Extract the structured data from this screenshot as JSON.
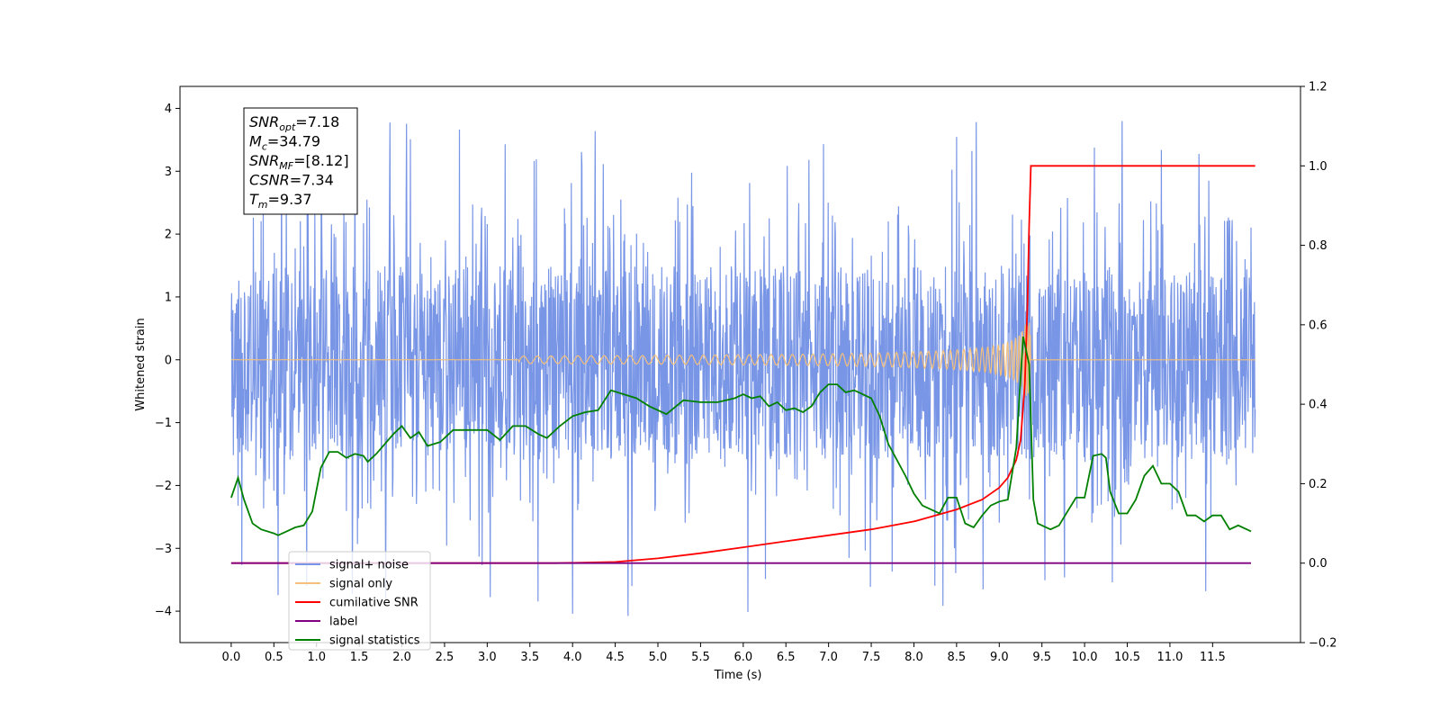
{
  "chart_data": {
    "type": "line",
    "xlabel": "Time (s)",
    "ylabel": "Whitened strain",
    "xlim": [
      -0.6,
      12.53
    ],
    "ylim": [
      -4.5,
      4.35
    ],
    "y2lim": [
      -0.2,
      1.2
    ],
    "xticks": [
      "0.0",
      "0.5",
      "1.0",
      "1.5",
      "2.0",
      "2.5",
      "3.0",
      "3.5",
      "4.0",
      "4.5",
      "5.0",
      "5.5",
      "6.0",
      "6.5",
      "7.0",
      "7.5",
      "8.0",
      "8.5",
      "9.0",
      "9.5",
      "10.0",
      "10.5",
      "11.0",
      "11.5"
    ],
    "yticks": [
      "4",
      "3",
      "2",
      "1",
      "0",
      "−1",
      "−2",
      "−3",
      "−4"
    ],
    "y2ticks": [
      "1.2",
      "1.0",
      "0.8",
      "0.6",
      "0.4",
      "0.2",
      "0.0",
      "−0.2"
    ],
    "grid": false,
    "legend_position": "lower-left",
    "annotation": {
      "lines": [
        {
          "var": "SNR",
          "sub": "opt",
          "value": "=7.18"
        },
        {
          "var": "M",
          "sub": "c",
          "value": "=34.79"
        },
        {
          "var": "SNR",
          "sub": "MF",
          "value": "=[8.12]"
        },
        {
          "var": "CSNR",
          "sub": "",
          "value": "=7.34"
        },
        {
          "var": "T",
          "sub": "m",
          "value": "=9.37"
        }
      ]
    },
    "series": [
      {
        "name": "signal+ noise",
        "color": "#7895e6",
        "axis": "left",
        "x_range": [
          0.0,
          12.0
        ],
        "amplitude_band": [
          -1.6,
          1.5
        ],
        "peak_max": 3.9,
        "peak_min": -4.1
      },
      {
        "name": "signal only",
        "color": "#f5c07a",
        "axis": "left",
        "x_range": [
          0.0,
          12.0
        ],
        "merger_time": 9.37,
        "peak_amplitude": 0.6
      },
      {
        "name": "cumilative SNR",
        "color": "#ff0000",
        "axis": "right",
        "x": [
          0.0,
          3.8,
          4.5,
          5.0,
          5.5,
          6.0,
          6.5,
          7.0,
          7.5,
          8.0,
          8.5,
          8.8,
          9.0,
          9.1,
          9.2,
          9.25,
          9.3,
          9.33,
          9.35,
          9.37,
          12.0
        ],
        "y": [
          0.0,
          0.0,
          0.003,
          0.012,
          0.025,
          0.04,
          0.055,
          0.07,
          0.085,
          0.105,
          0.135,
          0.16,
          0.19,
          0.215,
          0.26,
          0.31,
          0.45,
          0.65,
          0.85,
          1.0,
          1.0
        ]
      },
      {
        "name": "label",
        "color": "#800080",
        "axis": "right",
        "x": [
          0.0,
          11.95
        ],
        "y": [
          0.0,
          0.0
        ]
      },
      {
        "name": "signal statistics",
        "color": "#008000",
        "axis": "right",
        "x": [
          0.0,
          0.08,
          0.15,
          0.25,
          0.35,
          0.5,
          0.55,
          0.65,
          0.75,
          0.85,
          0.95,
          1.05,
          1.15,
          1.25,
          1.35,
          1.45,
          1.55,
          1.6,
          1.7,
          1.8,
          1.9,
          2.0,
          2.1,
          2.2,
          2.3,
          2.45,
          2.6,
          2.8,
          3.0,
          3.15,
          3.3,
          3.45,
          3.6,
          3.7,
          3.85,
          4.0,
          4.15,
          4.3,
          4.45,
          4.6,
          4.75,
          4.9,
          5.1,
          5.3,
          5.5,
          5.7,
          5.9,
          6.0,
          6.1,
          6.2,
          6.3,
          6.4,
          6.5,
          6.6,
          6.7,
          6.8,
          6.9,
          7.0,
          7.1,
          7.2,
          7.3,
          7.4,
          7.5,
          7.6,
          7.7,
          7.8,
          7.9,
          8.0,
          8.1,
          8.2,
          8.3,
          8.4,
          8.5,
          8.6,
          8.7,
          8.8,
          8.9,
          9.0,
          9.1,
          9.2,
          9.28,
          9.35,
          9.4,
          9.45,
          9.5,
          9.6,
          9.7,
          9.8,
          9.9,
          10.0,
          10.1,
          10.2,
          10.25,
          10.3,
          10.4,
          10.5,
          10.6,
          10.7,
          10.8,
          10.9,
          11.0,
          11.1,
          11.2,
          11.3,
          11.4,
          11.5,
          11.6,
          11.7,
          11.8,
          11.9,
          11.95
        ],
        "y": [
          0.165,
          0.215,
          0.16,
          0.1,
          0.085,
          0.075,
          0.07,
          0.08,
          0.09,
          0.095,
          0.13,
          0.24,
          0.28,
          0.28,
          0.265,
          0.275,
          0.27,
          0.255,
          0.275,
          0.3,
          0.325,
          0.345,
          0.315,
          0.33,
          0.295,
          0.305,
          0.335,
          0.335,
          0.335,
          0.31,
          0.345,
          0.345,
          0.325,
          0.315,
          0.345,
          0.37,
          0.38,
          0.385,
          0.435,
          0.425,
          0.415,
          0.395,
          0.375,
          0.41,
          0.405,
          0.405,
          0.415,
          0.425,
          0.415,
          0.42,
          0.395,
          0.405,
          0.385,
          0.39,
          0.38,
          0.395,
          0.43,
          0.45,
          0.45,
          0.43,
          0.435,
          0.425,
          0.415,
          0.37,
          0.3,
          0.26,
          0.22,
          0.175,
          0.145,
          0.135,
          0.125,
          0.165,
          0.165,
          0.1,
          0.09,
          0.12,
          0.145,
          0.155,
          0.16,
          0.29,
          0.57,
          0.5,
          0.16,
          0.1,
          0.095,
          0.085,
          0.095,
          0.13,
          0.165,
          0.165,
          0.27,
          0.275,
          0.265,
          0.18,
          0.125,
          0.125,
          0.16,
          0.22,
          0.245,
          0.2,
          0.2,
          0.18,
          0.12,
          0.12,
          0.105,
          0.12,
          0.12,
          0.085,
          0.095,
          0.085,
          0.08
        ]
      }
    ]
  }
}
